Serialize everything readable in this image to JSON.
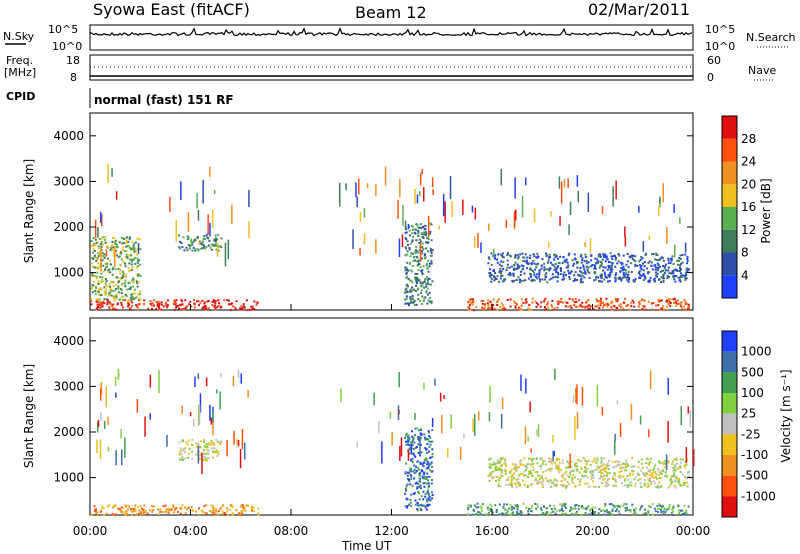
{
  "header": {
    "station": "Syowa East (fitACF)",
    "beam": "Beam 12",
    "date": "02/Mar/2011"
  },
  "top_panels": {
    "nsky_label": "N.Sky",
    "nsky_ticks": [
      "10^5",
      "10^0"
    ],
    "nsearch_label": "N.Search",
    "nsearch_ticks": [
      "10^5",
      "10^0"
    ],
    "freq_label": "Freq.",
    "freq_unit": "[MHz]",
    "freq_ticks": [
      "18",
      "8"
    ],
    "nave_label": "Nave",
    "nave_ticks": [
      "60",
      "0"
    ],
    "cpid_label": "CPID",
    "cpid_value": "normal (fast) 151 RF"
  },
  "chart_data": [
    {
      "type": "heatmap",
      "name": "power",
      "ylabel": "Slant Range [km]",
      "xlabel": "Time UT",
      "xlim": [
        0,
        24
      ],
      "ylim": [
        180,
        4500
      ],
      "yticks": [
        "1000",
        "2000",
        "3000",
        "4000"
      ],
      "colorbar_label": "Power [dB]",
      "colorbar_ticks": [
        "4",
        "8",
        "12",
        "16",
        "20",
        "24",
        "28"
      ],
      "colorbar_colors": [
        "#1f3fff",
        "#2d4fa8",
        "#3d7f5a",
        "#58b050",
        "#f0c020",
        "#f09020",
        "#ff5010",
        "#e01010"
      ],
      "scatter_regions": [
        {
          "t0": 0.0,
          "t1": 6.7,
          "r0": 200,
          "r1": 420,
          "level": 7
        },
        {
          "t0": 0.0,
          "t1": 2.0,
          "r0": 400,
          "r1": 1800,
          "level": 3
        },
        {
          "t0": 3.5,
          "t1": 5.2,
          "r0": 1500,
          "r1": 1850,
          "level": 2
        },
        {
          "t0": 12.5,
          "t1": 13.6,
          "r0": 300,
          "r1": 2100,
          "level": 2
        },
        {
          "t0": 15.0,
          "t1": 23.8,
          "r0": 200,
          "r1": 450,
          "level": 6
        },
        {
          "t0": 15.8,
          "t1": 23.8,
          "r0": 800,
          "r1": 1450,
          "level": 1
        }
      ]
    },
    {
      "type": "heatmap",
      "name": "velocity",
      "ylabel": "Slant Range [km]",
      "xlabel": "Time UT",
      "xlim": [
        0,
        24
      ],
      "ylim": [
        180,
        4500
      ],
      "yticks": [
        "1000",
        "2000",
        "3000",
        "4000"
      ],
      "xticks": [
        "00:00",
        "04:00",
        "08:00",
        "12:00",
        "16:00",
        "20:00",
        "00:00"
      ],
      "colorbar_label": "Velocity [m s⁻¹]",
      "colorbar_ticks": [
        "1000",
        "500",
        "100",
        "25",
        "-25",
        "-100",
        "-500",
        "-1000"
      ],
      "colorbar_colors": [
        "#1f3fff",
        "#3d6faa",
        "#40a050",
        "#80d040",
        "#c0c0c0",
        "#f0c020",
        "#f09020",
        "#ff5010",
        "#e01010"
      ],
      "scatter_regions": [
        {
          "t0": 0.0,
          "t1": 6.7,
          "r0": 200,
          "r1": 420,
          "level": 6
        },
        {
          "t0": 3.5,
          "t1": 5.2,
          "r0": 1400,
          "r1": 1850,
          "level": 4
        },
        {
          "t0": 12.5,
          "t1": 13.6,
          "r0": 300,
          "r1": 2100,
          "level": 1
        },
        {
          "t0": 15.0,
          "t1": 23.8,
          "r0": 200,
          "r1": 450,
          "level": 2
        },
        {
          "t0": 15.8,
          "t1": 23.8,
          "r0": 800,
          "r1": 1450,
          "level": 4
        }
      ]
    }
  ]
}
